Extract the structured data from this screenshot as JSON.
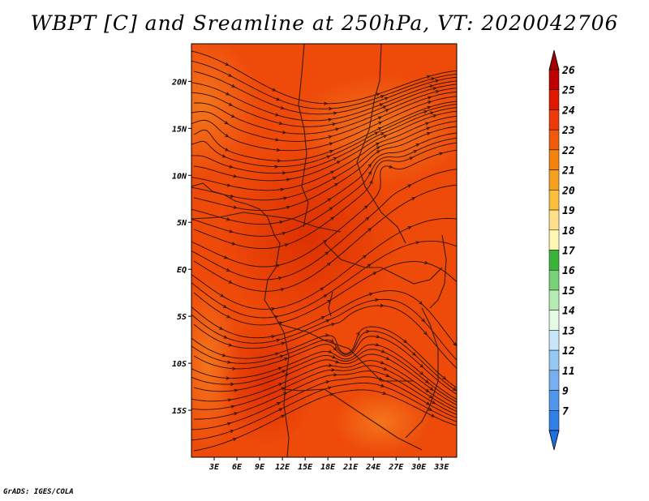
{
  "title": "WBPT [C] and Sreamline at 250hPa, VT: 2020042706",
  "credit": "GrADS: IGES/COLA",
  "map": {
    "lon_range": [
      0,
      35
    ],
    "lat_range": [
      -20,
      24
    ],
    "lon_ticks": [
      "3E",
      "6E",
      "9E",
      "12E",
      "15E",
      "18E",
      "21E",
      "24E",
      "27E",
      "30E",
      "33E"
    ],
    "lat_ticks": [
      "20N",
      "15N",
      "10N",
      "5N",
      "EQ",
      "5S",
      "10S",
      "15S"
    ],
    "field_value_range": [
      23,
      25
    ]
  },
  "colorbar": {
    "labels": [
      "26",
      "25",
      "24",
      "23",
      "22",
      "21",
      "20",
      "19",
      "18",
      "17",
      "16",
      "15",
      "14",
      "13",
      "12",
      "11",
      "9",
      "7"
    ],
    "colors": {
      "top_arrow": "#a50000",
      "bottom_arrow": "#1e6fe0",
      "bins": [
        "#c00000",
        "#e01800",
        "#ee3a0a",
        "#f05a0a",
        "#f5820a",
        "#f5a01e",
        "#fbbf3c",
        "#fde08a",
        "#fff6b4",
        "#3cb43c",
        "#78d278",
        "#b4ecb4",
        "#e6fae6",
        "#c8e6fa",
        "#96c8f5",
        "#78aff0",
        "#5096eb",
        "#2e7fe6"
      ]
    }
  }
}
